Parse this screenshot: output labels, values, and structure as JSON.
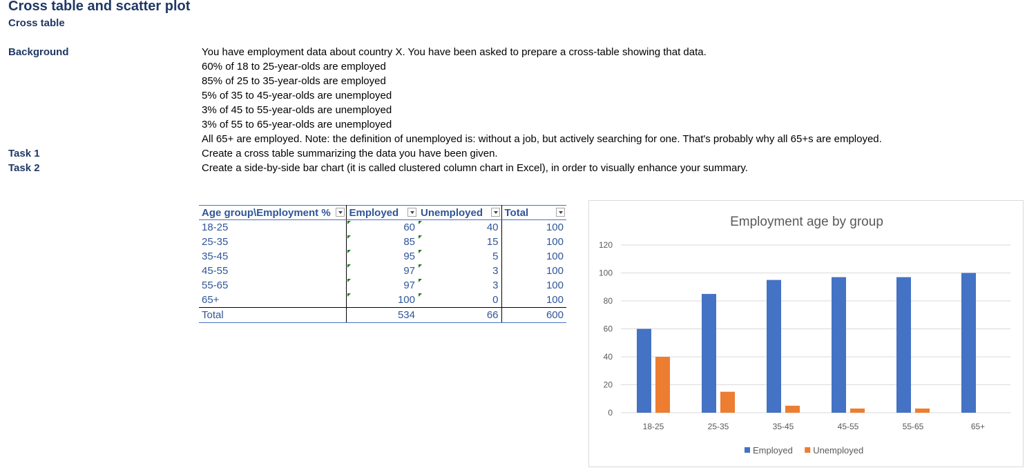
{
  "header": {
    "title": "Cross table and scatter plot",
    "subtitle": "Cross table"
  },
  "background": {
    "label": "Background",
    "lines": [
      "You have employment data about country X. You have been asked to prepare a cross-table showing that data.",
      "60% of 18 to 25-year-olds are employed",
      "85% of 25 to 35-year-olds are employed",
      "5% of 35 to 45-year-olds are unemployed",
      "3% of 45 to 55-year-olds are unemployed",
      "3% of 55 to 65-year-olds are unemployed",
      "All 65+ are employed. Note: the definition of unemployed is: without a job, but actively searching for one. That's probably why all 65+s are employed."
    ]
  },
  "tasks": [
    {
      "label": "Task 1",
      "text": "Create a cross table summarizing the data you have been given."
    },
    {
      "label": "Task 2",
      "text": "Create a side-by-side bar chart (it is called clustered column chart in Excel), in order to visually enhance your summary."
    }
  ],
  "table": {
    "headers": [
      "Age group\\Employment %",
      "Employed",
      "Unemployed",
      "Total"
    ],
    "rows": [
      [
        "18-25",
        "60",
        "40",
        "100"
      ],
      [
        "25-35",
        "85",
        "15",
        "100"
      ],
      [
        "35-45",
        "95",
        "5",
        "100"
      ],
      [
        "45-55",
        "97",
        "3",
        "100"
      ],
      [
        "55-65",
        "97",
        "3",
        "100"
      ],
      [
        "65+",
        "100",
        "0",
        "100"
      ]
    ],
    "total": [
      "Total",
      "534",
      "66",
      "600"
    ]
  },
  "chart_data": {
    "type": "bar",
    "title": "Employment age by group",
    "categories": [
      "18-25",
      "25-35",
      "35-45",
      "45-55",
      "55-65",
      "65+"
    ],
    "series": [
      {
        "name": "Employed",
        "values": [
          60,
          85,
          95,
          97,
          97,
          100
        ],
        "color": "#4472c4"
      },
      {
        "name": "Unemployed",
        "values": [
          40,
          15,
          5,
          3,
          3,
          0
        ],
        "color": "#ed7d31"
      }
    ],
    "ylim": [
      0,
      120
    ],
    "yticks": [
      0,
      20,
      40,
      60,
      80,
      100,
      120
    ],
    "grid": true,
    "legend": "bottom"
  }
}
